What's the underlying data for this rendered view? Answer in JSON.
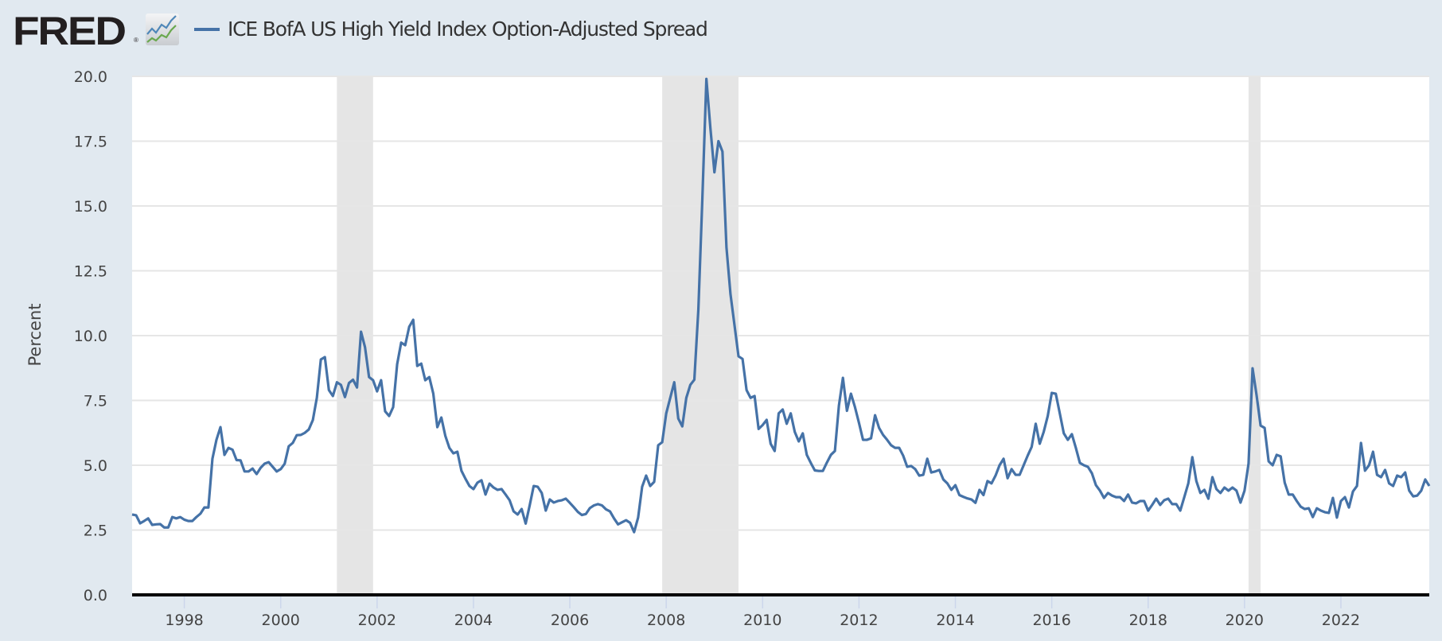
{
  "header": {
    "logo_text": "FRED",
    "logo_reg": "®",
    "logo_icon": "line-chart-icon",
    "series_label": "ICE BofA US High Yield Index Option-Adjusted Spread",
    "series_color": "#4572a7"
  },
  "chart_data": {
    "type": "line",
    "title": "ICE BofA US High Yield Index Option-Adjusted Spread",
    "xlabel": "",
    "ylabel": "Percent",
    "ylim": [
      0,
      20
    ],
    "xlim": [
      "1996-12",
      "2023-11"
    ],
    "grid": true,
    "legend": "top-left",
    "yticks": [
      "0.0",
      "2.5",
      "5.0",
      "7.5",
      "10.0",
      "12.5",
      "15.0",
      "17.5",
      "20.0"
    ],
    "xticks": [
      "1998",
      "2000",
      "2002",
      "2004",
      "2006",
      "2008",
      "2010",
      "2012",
      "2014",
      "2016",
      "2018",
      "2020",
      "2022"
    ],
    "recessions": [
      [
        "2001-03",
        "2001-11"
      ],
      [
        "2007-12",
        "2009-06"
      ],
      [
        "2020-02",
        "2020-04"
      ]
    ],
    "x_start": "1996-12",
    "frequency": "monthly",
    "series": [
      {
        "name": "ICE BofA US High Yield Index Option-Adjusted Spread",
        "color": "#4572a7",
        "values": [
          3.1,
          3.07,
          2.76,
          2.85,
          2.95,
          2.7,
          2.72,
          2.73,
          2.6,
          2.6,
          3.0,
          2.95,
          3.0,
          2.9,
          2.85,
          2.85,
          3.0,
          3.13,
          3.37,
          3.37,
          5.25,
          5.98,
          6.47,
          5.4,
          5.67,
          5.6,
          5.2,
          5.19,
          4.76,
          4.76,
          4.87,
          4.66,
          4.9,
          5.06,
          5.12,
          4.94,
          4.76,
          4.85,
          5.06,
          5.73,
          5.86,
          6.16,
          6.17,
          6.25,
          6.38,
          6.74,
          7.6,
          9.08,
          9.17,
          7.9,
          7.67,
          8.2,
          8.1,
          7.63,
          8.17,
          8.3,
          8.0,
          10.15,
          9.55,
          8.4,
          8.28,
          7.85,
          8.28,
          7.08,
          6.9,
          7.24,
          8.9,
          9.73,
          9.63,
          10.34,
          10.61,
          8.83,
          8.92,
          8.28,
          8.4,
          7.76,
          6.47,
          6.84,
          6.13,
          5.67,
          5.46,
          5.52,
          4.79,
          4.48,
          4.2,
          4.08,
          4.33,
          4.42,
          3.87,
          4.29,
          4.14,
          4.05,
          4.08,
          3.87,
          3.65,
          3.22,
          3.1,
          3.31,
          2.75,
          3.45,
          4.2,
          4.17,
          3.93,
          3.25,
          3.68,
          3.56,
          3.62,
          3.65,
          3.71,
          3.55,
          3.38,
          3.2,
          3.08,
          3.12,
          3.35,
          3.45,
          3.5,
          3.45,
          3.3,
          3.22,
          2.95,
          2.72,
          2.8,
          2.88,
          2.78,
          2.42,
          2.98,
          4.17,
          4.6,
          4.2,
          4.36,
          5.77,
          5.89,
          7.0,
          7.6,
          8.2,
          6.8,
          6.5,
          7.6,
          8.1,
          8.3,
          11.0,
          15.3,
          19.9,
          18.0,
          16.3,
          17.5,
          17.1,
          13.4,
          11.6,
          10.4,
          9.2,
          9.1,
          7.9,
          7.6,
          7.67,
          6.4,
          6.55,
          6.75,
          5.83,
          5.55,
          7.0,
          7.15,
          6.6,
          7.0,
          6.29,
          5.92,
          6.23,
          5.4,
          5.09,
          4.8,
          4.78,
          4.78,
          5.1,
          5.4,
          5.55,
          7.3,
          8.37,
          7.1,
          7.76,
          7.24,
          6.63,
          5.98,
          5.98,
          6.04,
          6.93,
          6.44,
          6.17,
          5.98,
          5.77,
          5.67,
          5.67,
          5.37,
          4.94,
          4.97,
          4.85,
          4.6,
          4.63,
          5.25,
          4.72,
          4.76,
          4.82,
          4.45,
          4.3,
          4.05,
          4.23,
          3.85,
          3.78,
          3.72,
          3.68,
          3.55,
          4.05,
          3.85,
          4.39,
          4.3,
          4.6,
          5.0,
          5.25,
          4.5,
          4.85,
          4.63,
          4.63,
          5.0,
          5.37,
          5.71,
          6.6,
          5.83,
          6.29,
          6.9,
          7.79,
          7.76,
          7.0,
          6.23,
          5.98,
          6.2,
          5.67,
          5.09,
          5.0,
          4.94,
          4.69,
          4.23,
          4.02,
          3.74,
          3.93,
          3.83,
          3.77,
          3.77,
          3.62,
          3.87,
          3.56,
          3.53,
          3.62,
          3.62,
          3.25,
          3.47,
          3.71,
          3.47,
          3.65,
          3.71,
          3.5,
          3.5,
          3.25,
          3.77,
          4.3,
          5.31,
          4.39,
          3.93,
          4.05,
          3.71,
          4.54,
          4.08,
          3.93,
          4.14,
          4.02,
          4.14,
          4.02,
          3.56,
          4.02,
          5.06,
          8.74,
          7.7,
          6.53,
          6.44,
          5.15,
          5.0,
          5.4,
          5.34,
          4.33,
          3.87,
          3.87,
          3.62,
          3.4,
          3.31,
          3.34,
          3.0,
          3.34,
          3.25,
          3.19,
          3.16,
          3.74,
          2.98,
          3.62,
          3.77,
          3.37,
          3.99,
          4.2,
          5.86,
          4.79,
          5.0,
          5.52,
          4.63,
          4.54,
          4.82,
          4.3,
          4.2,
          4.6,
          4.54,
          4.72,
          4.02,
          3.8,
          3.83,
          4.02,
          4.45,
          4.2
        ]
      }
    ]
  }
}
